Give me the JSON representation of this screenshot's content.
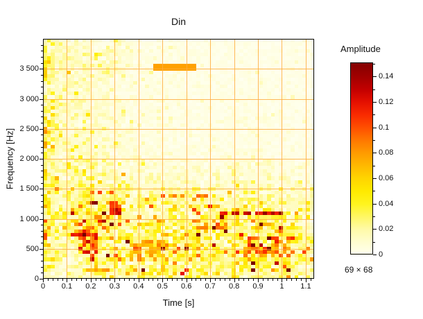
{
  "chart_data": {
    "type": "heatmap",
    "title": "Din",
    "xlabel": "Time [s]",
    "ylabel": "Frequency [Hz]",
    "x": {
      "range": [
        0,
        1.135
      ],
      "ticks": [
        0,
        0.1,
        0.2,
        0.3,
        0.4,
        0.5,
        0.6,
        0.7,
        0.8,
        0.9,
        1,
        1.1
      ],
      "tick_labels": [
        "0",
        "0.1",
        "0.2",
        "0.3",
        "0.4",
        "0.5",
        "0.6",
        "0.7",
        "0.8",
        "0.9",
        "1",
        "1.1"
      ],
      "minor_step": 0.02
    },
    "y": {
      "range": [
        0,
        4000
      ],
      "ticks": [
        0,
        500,
        1000,
        1500,
        2000,
        2500,
        3000,
        3500
      ],
      "tick_labels": [
        "0",
        "500",
        "1 000",
        "1 500",
        "2 000",
        "2 500",
        "3 000",
        "3 500"
      ],
      "minor_step": 100
    },
    "colorbar": {
      "label": "Amplitude",
      "range": [
        0,
        0.151
      ],
      "ticks": [
        0,
        0.02,
        0.04,
        0.06,
        0.08,
        0.1,
        0.12,
        0.14
      ],
      "tick_labels": [
        "0",
        "0.02",
        "0.04",
        "0.06",
        "0.08",
        "0.1",
        "0.12",
        "0.14"
      ],
      "minor_step": 0.01,
      "size_label": "69 × 68"
    },
    "grid": {
      "x_step": 0.1,
      "y_step": 500,
      "color": "#ffab40",
      "alpha": 0.85
    },
    "frame_color": "#000000",
    "colormap": [
      [
        0.0,
        "#ffffef"
      ],
      [
        0.01,
        "#fffdd0"
      ],
      [
        0.02,
        "#fffaa8"
      ],
      [
        0.03,
        "#fff764"
      ],
      [
        0.04,
        "#fff41e"
      ],
      [
        0.05,
        "#ffea00"
      ],
      [
        0.06,
        "#ffd500"
      ],
      [
        0.07,
        "#ffb900"
      ],
      [
        0.08,
        "#ff9b00"
      ],
      [
        0.09,
        "#ff7800"
      ],
      [
        0.1,
        "#ff4f00"
      ],
      [
        0.11,
        "#f92b00"
      ],
      [
        0.12,
        "#e51000"
      ],
      [
        0.13,
        "#c30000"
      ],
      [
        0.14,
        "#a10000"
      ],
      [
        0.155,
        "#780000"
      ]
    ],
    "matrix": {
      "cols": 69,
      "rows": 68,
      "seed": 42,
      "noise": {
        "sigma": 0.55,
        "whiten_prob": 0.08,
        "whiten_factor": 0.18,
        "spike_prob": 0.045,
        "spike_min": 2.0,
        "spike_span": 2.0,
        "spike_max_freq": 1500,
        "spike_min_time": 0.1,
        "clamp": 0.155
      },
      "envelope_note": "coarse 16x16 amplitude envelope, rows top(4000Hz) to bottom(0Hz), cols t=0 to 1.135s",
      "envelope": [
        [
          0.032,
          0.012,
          0.014,
          0.01,
          0.012,
          0.006,
          0.004,
          0.004,
          0.003,
          0.003,
          0.003,
          0.003,
          0.003,
          0.003,
          0.003,
          0.003
        ],
        [
          0.032,
          0.014,
          0.016,
          0.012,
          0.014,
          0.006,
          0.004,
          0.004,
          0.004,
          0.003,
          0.003,
          0.003,
          0.003,
          0.003,
          0.003,
          0.003
        ],
        [
          0.034,
          0.012,
          0.014,
          0.012,
          0.01,
          0.006,
          0.005,
          0.004,
          0.004,
          0.003,
          0.003,
          0.003,
          0.004,
          0.003,
          0.003,
          0.003
        ],
        [
          0.03,
          0.01,
          0.014,
          0.01,
          0.008,
          0.005,
          0.004,
          0.004,
          0.003,
          0.003,
          0.003,
          0.003,
          0.003,
          0.003,
          0.003,
          0.003
        ],
        [
          0.036,
          0.012,
          0.012,
          0.01,
          0.008,
          0.005,
          0.004,
          0.004,
          0.004,
          0.003,
          0.003,
          0.004,
          0.003,
          0.003,
          0.003,
          0.003
        ],
        [
          0.042,
          0.01,
          0.014,
          0.012,
          0.008,
          0.006,
          0.005,
          0.004,
          0.004,
          0.004,
          0.004,
          0.004,
          0.004,
          0.004,
          0.003,
          0.003
        ],
        [
          0.038,
          0.01,
          0.012,
          0.01,
          0.01,
          0.006,
          0.005,
          0.005,
          0.004,
          0.004,
          0.004,
          0.004,
          0.004,
          0.004,
          0.004,
          0.004
        ],
        [
          0.044,
          0.012,
          0.014,
          0.012,
          0.01,
          0.007,
          0.006,
          0.005,
          0.005,
          0.005,
          0.004,
          0.005,
          0.005,
          0.004,
          0.004,
          0.004
        ],
        [
          0.038,
          0.014,
          0.018,
          0.016,
          0.014,
          0.01,
          0.008,
          0.008,
          0.007,
          0.007,
          0.006,
          0.008,
          0.008,
          0.007,
          0.006,
          0.005
        ],
        [
          0.036,
          0.016,
          0.024,
          0.022,
          0.02,
          0.014,
          0.012,
          0.012,
          0.012,
          0.01,
          0.01,
          0.012,
          0.012,
          0.01,
          0.008,
          0.008
        ],
        [
          0.036,
          0.014,
          0.03,
          0.034,
          0.028,
          0.02,
          0.022,
          0.024,
          0.022,
          0.016,
          0.018,
          0.022,
          0.02,
          0.016,
          0.012,
          0.01
        ],
        [
          0.042,
          0.016,
          0.03,
          0.04,
          0.03,
          0.024,
          0.024,
          0.026,
          0.026,
          0.022,
          0.028,
          0.03,
          0.028,
          0.026,
          0.016,
          0.012
        ],
        [
          0.036,
          0.018,
          0.034,
          0.044,
          0.028,
          0.03,
          0.032,
          0.032,
          0.03,
          0.028,
          0.026,
          0.03,
          0.032,
          0.03,
          0.02,
          0.014
        ],
        [
          0.032,
          0.014,
          0.022,
          0.03,
          0.028,
          0.032,
          0.034,
          0.032,
          0.03,
          0.028,
          0.03,
          0.034,
          0.036,
          0.032,
          0.024,
          0.016
        ],
        [
          0.03,
          0.012,
          0.018,
          0.026,
          0.028,
          0.032,
          0.034,
          0.034,
          0.032,
          0.028,
          0.03,
          0.034,
          0.034,
          0.032,
          0.024,
          0.018
        ],
        [
          0.022,
          0.008,
          0.014,
          0.02,
          0.022,
          0.026,
          0.028,
          0.026,
          0.026,
          0.024,
          0.024,
          0.026,
          0.026,
          0.024,
          0.018,
          0.014
        ]
      ],
      "features": [
        {
          "name": "tone-3550Hz",
          "t": [
            0.468,
            0.636
          ],
          "f": [
            3500,
            3600
          ],
          "value": 0.078,
          "density": 1,
          "jitter": 0
        },
        {
          "name": "burst-0.2s",
          "t": [
            0.145,
            0.235
          ],
          "f": [
            440,
            960
          ],
          "value": 0.105,
          "density": 0.55,
          "jitter": 0.5
        },
        {
          "name": "spot-0.2s-1250Hz",
          "t": [
            0.19,
            0.225
          ],
          "f": [
            1225,
            1305
          ],
          "value": 0.142,
          "density": 1,
          "jitter": 0.15
        },
        {
          "name": "streak-0.3s",
          "t": [
            0.285,
            0.335
          ],
          "f": [
            1080,
            1310
          ],
          "value": 0.112,
          "density": 0.7,
          "jitter": 0.4
        },
        {
          "name": "dashes-1400Hz",
          "t": [
            0.5,
            0.74
          ],
          "f": [
            1330,
            1440
          ],
          "value": 0.095,
          "density": 0.55,
          "jitter": 0.4
        },
        {
          "name": "band-1100Hz",
          "t": [
            0.735,
            1.005
          ],
          "f": [
            1035,
            1115
          ],
          "value": 0.132,
          "density": 0.8,
          "jitter": 0.3
        },
        {
          "name": "cluster-low-right",
          "t": [
            0.84,
            1.05
          ],
          "f": [
            370,
            710
          ],
          "value": 0.092,
          "density": 0.45,
          "jitter": 0.5
        },
        {
          "name": "cluster-900Hz",
          "t": [
            0.6,
            0.77
          ],
          "f": [
            830,
            1005
          ],
          "value": 0.088,
          "density": 0.5,
          "jitter": 0.4
        },
        {
          "name": "cluster-400Hz-mid",
          "t": [
            0.355,
            0.53
          ],
          "f": [
            270,
            630
          ],
          "value": 0.072,
          "density": 0.45,
          "jitter": 0.5
        },
        {
          "name": "left-edge-2250Hz",
          "t": [
            0.0,
            0.022
          ],
          "f": [
            2170,
            2300
          ],
          "value": 0.072,
          "density": 1,
          "jitter": 0.2
        },
        {
          "name": "left-edge-1750Hz",
          "t": [
            0.0,
            0.022
          ],
          "f": [
            1710,
            1800
          ],
          "value": 0.062,
          "density": 1,
          "jitter": 0.2
        },
        {
          "name": "left-edge-720Hz",
          "t": [
            0.0,
            0.022
          ],
          "f": [
            660,
            770
          ],
          "value": 0.1,
          "density": 1,
          "jitter": 0.2
        },
        {
          "name": "spot-0.13s-730Hz",
          "t": [
            0.12,
            0.15
          ],
          "f": [
            690,
            770
          ],
          "value": 0.115,
          "density": 1,
          "jitter": 0.2
        },
        {
          "name": "dashes-150Hz",
          "t": [
            0.185,
            0.28
          ],
          "f": [
            110,
            180
          ],
          "value": 0.075,
          "density": 0.8,
          "jitter": 0.3
        }
      ]
    }
  }
}
